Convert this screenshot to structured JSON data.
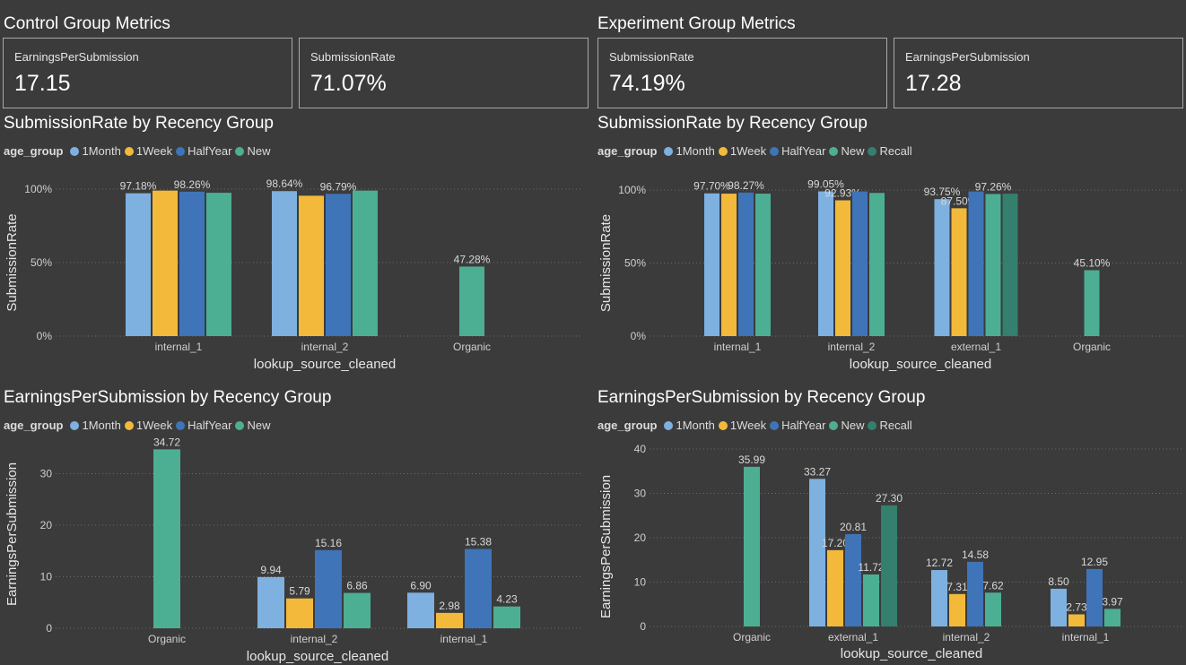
{
  "control": {
    "title": "Control Group Metrics",
    "cards": [
      {
        "label": "EarningsPerSubmission",
        "value": "17.15"
      },
      {
        "label": "SubmissionRate",
        "value": "71.07%"
      }
    ]
  },
  "experiment": {
    "title": "Experiment Group Metrics",
    "cards": [
      {
        "label": "SubmissionRate",
        "value": "74.19%"
      },
      {
        "label": "EarningsPerSubmission",
        "value": "17.28"
      }
    ]
  },
  "colors": {
    "1Month": "#7eb1e0",
    "1Week": "#f2b93b",
    "HalfYear": "#3f74b8",
    "New": "#4caf93",
    "Recall": "#347f6d",
    "grid": "#6a6a6a",
    "axis_text": "#cfcfcf"
  },
  "chart_data": [
    {
      "id": "control_rate",
      "type": "bar",
      "title": "SubmissionRate by Recency Group",
      "legend_title": "age_group",
      "legend_position": "top-left",
      "xlabel": "lookup_source_cleaned",
      "ylabel": "SubmissionRate",
      "ylim": [
        0,
        100
      ],
      "y_ticks": [
        0,
        50,
        100
      ],
      "y_tick_labels": [
        "0%",
        "50%",
        "100%"
      ],
      "grid": true,
      "categories": [
        "internal_1",
        "internal_2",
        "Organic"
      ],
      "series": [
        {
          "name": "1Month",
          "values": [
            97.18,
            98.64,
            null
          ],
          "labels": [
            "97.18%",
            "98.64%",
            ""
          ]
        },
        {
          "name": "1Week",
          "values": [
            99.0,
            95.5,
            null
          ],
          "labels": [
            "",
            "",
            ""
          ]
        },
        {
          "name": "HalfYear",
          "values": [
            98.26,
            96.79,
            null
          ],
          "labels": [
            "98.26%",
            "96.79%",
            ""
          ]
        },
        {
          "name": "New",
          "values": [
            97.5,
            99.0,
            47.28
          ],
          "labels": [
            "",
            "",
            "47.28%"
          ]
        }
      ]
    },
    {
      "id": "experiment_rate",
      "type": "bar",
      "title": "SubmissionRate by Recency Group",
      "legend_title": "age_group",
      "legend_position": "top-left",
      "xlabel": "lookup_source_cleaned",
      "ylabel": "SubmissionRate",
      "ylim": [
        0,
        100
      ],
      "y_ticks": [
        0,
        50,
        100
      ],
      "y_tick_labels": [
        "0%",
        "50%",
        "100%"
      ],
      "grid": true,
      "categories": [
        "internal_1",
        "internal_2",
        "external_1",
        "Organic"
      ],
      "series": [
        {
          "name": "1Month",
          "values": [
            97.7,
            99.05,
            93.75,
            null
          ],
          "labels": [
            "97.70%",
            "99.05%",
            "93.75%",
            ""
          ]
        },
        {
          "name": "1Week",
          "values": [
            97.5,
            92.93,
            87.5,
            null
          ],
          "labels": [
            "",
            "92.93%",
            "87.50%",
            ""
          ]
        },
        {
          "name": "HalfYear",
          "values": [
            98.27,
            99.0,
            99.0,
            null
          ],
          "labels": [
            "98.27%",
            "",
            "",
            ""
          ]
        },
        {
          "name": "New",
          "values": [
            97.5,
            98.0,
            97.26,
            45.1
          ],
          "labels": [
            "",
            "",
            "97.26%",
            "45.10%"
          ]
        },
        {
          "name": "Recall",
          "values": [
            null,
            null,
            97.5,
            null
          ],
          "labels": [
            "",
            "",
            "",
            ""
          ]
        }
      ]
    },
    {
      "id": "control_eps",
      "type": "bar",
      "title": "EarningsPerSubmission by Recency Group",
      "legend_title": "age_group",
      "legend_position": "top-left",
      "xlabel": "lookup_source_cleaned",
      "ylabel": "EarningsPerSubmission",
      "ylim": [
        0,
        40
      ],
      "y_ticks": [
        0,
        10,
        20,
        30
      ],
      "y_tick_labels": [
        "0",
        "10",
        "20",
        "30"
      ],
      "grid": true,
      "categories": [
        "Organic",
        "internal_2",
        "internal_1"
      ],
      "series": [
        {
          "name": "1Month",
          "values": [
            null,
            9.94,
            6.9
          ],
          "labels": [
            "",
            "9.94",
            "6.90"
          ]
        },
        {
          "name": "1Week",
          "values": [
            null,
            5.79,
            2.98
          ],
          "labels": [
            "",
            "5.79",
            "2.98"
          ]
        },
        {
          "name": "HalfYear",
          "values": [
            null,
            15.16,
            15.38
          ],
          "labels": [
            "",
            "15.16",
            "15.38"
          ]
        },
        {
          "name": "New",
          "values": [
            34.72,
            6.86,
            4.23
          ],
          "labels": [
            "34.72",
            "6.86",
            "4.23"
          ]
        }
      ]
    },
    {
      "id": "experiment_eps",
      "type": "bar",
      "title": "EarningsPerSubmission by Recency Group",
      "legend_title": "age_group",
      "legend_position": "top-left",
      "xlabel": "lookup_source_cleaned",
      "ylabel": "EarningsPerSubmission",
      "ylim": [
        0,
        40
      ],
      "y_ticks": [
        0,
        10,
        20,
        30,
        40
      ],
      "y_tick_labels": [
        "0",
        "10",
        "20",
        "30",
        "40"
      ],
      "grid": true,
      "categories": [
        "Organic",
        "external_1",
        "internal_2",
        "internal_1"
      ],
      "series": [
        {
          "name": "1Month",
          "values": [
            null,
            33.27,
            12.72,
            8.5
          ],
          "labels": [
            "",
            "33.27",
            "12.72",
            "8.50"
          ]
        },
        {
          "name": "1Week",
          "values": [
            null,
            17.2,
            7.31,
            2.73
          ],
          "labels": [
            "",
            "17.20",
            "7.31",
            "2.73"
          ]
        },
        {
          "name": "HalfYear",
          "values": [
            null,
            20.81,
            14.58,
            12.95
          ],
          "labels": [
            "",
            "20.81",
            "14.58",
            "12.95"
          ]
        },
        {
          "name": "New",
          "values": [
            35.99,
            11.72,
            7.62,
            3.97
          ],
          "labels": [
            "35.99",
            "11.72",
            "7.62",
            "3.97"
          ]
        },
        {
          "name": "Recall",
          "values": [
            null,
            27.3,
            null,
            null
          ],
          "labels": [
            "",
            "27.30",
            "",
            ""
          ]
        }
      ]
    }
  ]
}
